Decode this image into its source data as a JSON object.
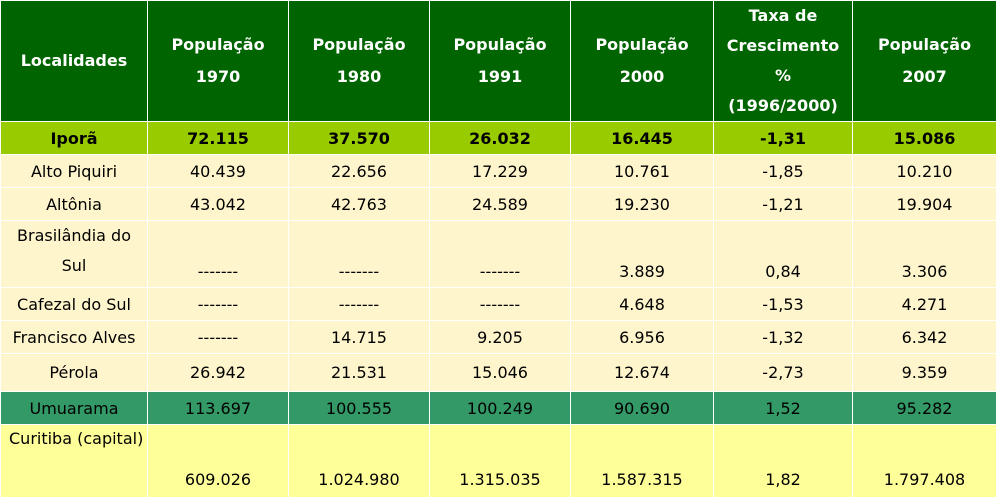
{
  "header": {
    "localidades": "Localidades",
    "columns": [
      {
        "line1": "População",
        "line2": "1970"
      },
      {
        "line1": "População",
        "line2": "1980"
      },
      {
        "line1": "População",
        "line2": "1991"
      },
      {
        "line1": "População",
        "line2": "2000"
      },
      {
        "line1": "Taxa de",
        "line2": "Crescimento",
        "line3": "%",
        "line4": "(1996/2000)"
      },
      {
        "line1": "População",
        "line2": "2007"
      }
    ]
  },
  "rows": [
    {
      "loc": "Iporã",
      "p1970": "72.115",
      "p1980": "37.570",
      "p1991": "26.032",
      "p2000": "16.445",
      "taxa": "-1,31",
      "p2007": "15.086"
    },
    {
      "loc": "Alto Piquiri",
      "p1970": "40.439",
      "p1980": "22.656",
      "p1991": "17.229",
      "p2000": "10.761",
      "taxa": "-1,85",
      "p2007": "10.210"
    },
    {
      "loc": "Altônia",
      "p1970": "43.042",
      "p1980": "42.763",
      "p1991": "24.589",
      "p2000": "19.230",
      "taxa": "-1,21",
      "p2007": "19.904"
    },
    {
      "loc": "Brasilândia do Sul",
      "p1970": "-------",
      "p1980": "-------",
      "p1991": "-------",
      "p2000": "3.889",
      "taxa": "0,84",
      "p2007": "3.306"
    },
    {
      "loc": "Cafezal do Sul",
      "p1970": "-------",
      "p1980": "-------",
      "p1991": "-------",
      "p2000": "4.648",
      "taxa": "-1,53",
      "p2007": "4.271"
    },
    {
      "loc": "Francisco Alves",
      "p1970": "-------",
      "p1980": "14.715",
      "p1991": "9.205",
      "p2000": "6.956",
      "taxa": "-1,32",
      "p2007": "6.342"
    },
    {
      "loc": "Pérola",
      "p1970": "26.942",
      "p1980": "21.531",
      "p1991": "15.046",
      "p2000": "12.674",
      "taxa": "-2,73",
      "p2007": "9.359"
    },
    {
      "loc": "Umuarama",
      "p1970": "113.697",
      "p1980": "100.555",
      "p1991": "100.249",
      "p2000": "90.690",
      "taxa": "1,52",
      "p2007": "95.282"
    },
    {
      "loc": "Curitiba (capital)",
      "p1970": "609.026",
      "p1980": "1.024.980",
      "p1991": "1.315.035",
      "p2000": "1.587.315",
      "taxa": "1,82",
      "p2007": "1.797.408"
    }
  ],
  "colors": {
    "header": "#006400",
    "highlight": "#99cc00",
    "normal": "#fff5cc",
    "umuarama": "#339966",
    "capital": "#ffff99"
  }
}
